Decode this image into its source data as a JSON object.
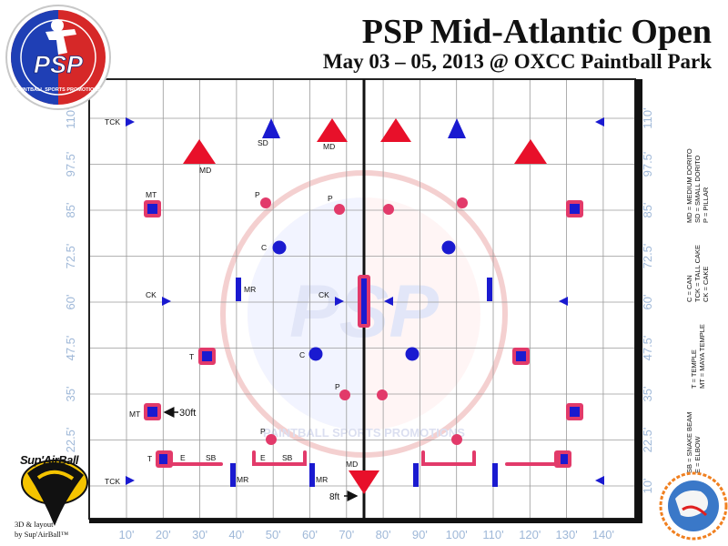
{
  "header": {
    "title": "PSP Mid-Atlantic Open",
    "subtitle": "May 03 – 05, 2013 @ OXCC Paintball Park"
  },
  "logo": {
    "name": "PSP",
    "ring_text": "PAINTBALL SPORTS PROMOTIONS"
  },
  "watermark": {
    "name": "PSP",
    "ring_text": "PAINTBALL SPORTS PROMOTIONS"
  },
  "axes": {
    "x_ticks": [
      "10'",
      "20'",
      "30'",
      "40'",
      "50'",
      "60'",
      "70'",
      "80'",
      "90'",
      "100'",
      "110'",
      "120'",
      "130'",
      "140'"
    ],
    "y_ticks": [
      "10'",
      "22.5'",
      "35'",
      "47.5'",
      "60'",
      "72.5'",
      "85'",
      "97.5'",
      "110'"
    ]
  },
  "legend": [
    {
      "text": "MD = MEDIUM DORITO"
    },
    {
      "text": "SD = SMALL DORITO"
    },
    {
      "text": "P = PILLAR"
    },
    {
      "text": "C = CAN"
    },
    {
      "text": "TCK = TALL CAKE"
    },
    {
      "text": "CK = CAKE"
    },
    {
      "text": "T = TEMPLE"
    },
    {
      "text": "MT = MAYA TEMPLE"
    },
    {
      "text": "SB = SNAKE BEAM"
    },
    {
      "text": "E = ELBOW"
    }
  ],
  "labels": {
    "tck_top": "TCK",
    "sd": "SD",
    "md_top": "MD",
    "md_left": "MD",
    "mt_top": "MT",
    "p_left_top": "P",
    "p_mid_top": "P",
    "c_upper": "C",
    "mr_upper": "MR",
    "ck_left": "CK",
    "ck_mid": "CK",
    "t_mid": "T",
    "c_lower": "C",
    "p_lower": "P",
    "mt_lower": "MT",
    "dist_30ft": "30ft",
    "p_bottom": "P",
    "t_bottom": "T",
    "e_left": "E",
    "sb_left": "SB",
    "e_mid": "E",
    "sb_mid": "SB",
    "md_bottom": "MD",
    "mr_left": "MR",
    "mr_mid": "MR",
    "tck_bottom": "TCK",
    "dist_8ft": "8ft"
  },
  "credit": {
    "brand": "Sup'AirBall",
    "line1": "3D & layout",
    "line2": "by Sup'AirBall™"
  },
  "colors": {
    "blue": "#1a1ad0",
    "red": "#e8102a",
    "pink": "#e23a6a",
    "grid": "#9a9a9a"
  }
}
